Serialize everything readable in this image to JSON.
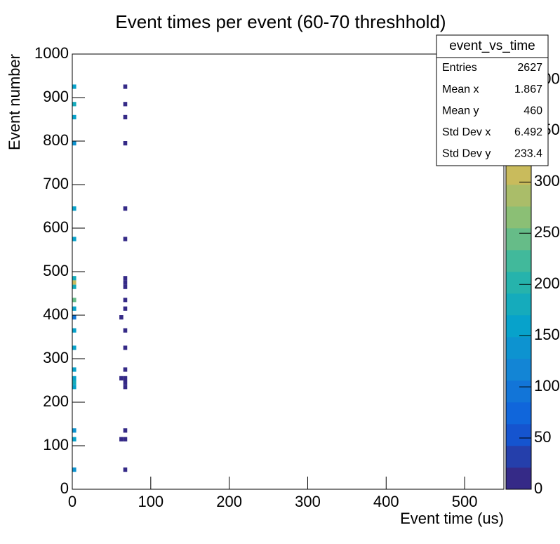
{
  "chart_data": {
    "type": "heatmap",
    "title": "Event times per event (60-70 threshhold)",
    "x_label": "Event time (us)",
    "y_label": "Event number",
    "xlim": [
      0,
      550
    ],
    "ylim": [
      0,
      1000
    ],
    "zlim": [
      0,
      425
    ],
    "xticks": [
      0,
      100,
      200,
      300,
      400,
      500
    ],
    "yticks": [
      0,
      100,
      200,
      300,
      400,
      500,
      600,
      700,
      800,
      900,
      1000
    ],
    "zticks": [
      0,
      50,
      100,
      150,
      200,
      250,
      300,
      350,
      400
    ],
    "palette": [
      "#352a87",
      "#0f5cdd",
      "#1481d6",
      "#06a4ca",
      "#2eb7a4",
      "#87bf77",
      "#d1bb59",
      "#fec832",
      "#f9fb0e"
    ],
    "x": [
      2.5,
      2.5,
      2.5,
      2.5,
      2.5,
      2.5,
      2.5,
      2.5,
      2.5,
      2.5,
      2.5,
      2.5,
      2.5,
      2.5,
      2.5,
      2.5,
      2.5,
      2.5,
      2.5,
      2.5,
      2.5,
      67.5,
      67.5,
      67.5,
      67.5,
      67.5,
      67.5,
      67.5,
      67.5,
      67.5,
      67.5,
      67.5,
      67.5,
      67.5,
      67.5,
      67.5,
      67.5,
      67.5,
      67.5,
      67.5,
      67.5,
      62.5,
      62.5,
      62.5
    ],
    "y": [
      925,
      885,
      855,
      795,
      645,
      575,
      485,
      475,
      465,
      435,
      415,
      395,
      365,
      325,
      275,
      255,
      245,
      235,
      135,
      115,
      45,
      925,
      885,
      855,
      795,
      645,
      575,
      485,
      475,
      465,
      435,
      415,
      365,
      325,
      275,
      255,
      245,
      235,
      135,
      115,
      45,
      255,
      115,
      395
    ],
    "values": [
      160,
      170,
      160,
      130,
      150,
      150,
      180,
      300,
      170,
      240,
      150,
      90,
      150,
      150,
      150,
      160,
      180,
      150,
      140,
      150,
      140,
      5,
      5,
      5,
      5,
      5,
      5,
      5,
      5,
      5,
      5,
      5,
      5,
      5,
      5,
      5,
      5,
      5,
      5,
      5,
      5,
      5,
      5,
      5
    ],
    "stats": {
      "title": "event_vs_time",
      "labels": [
        "Entries",
        "Mean x",
        "Mean y",
        "Std Dev x",
        "Std Dev y"
      ],
      "values": [
        2627,
        1.867,
        460,
        6.492,
        233.4
      ]
    }
  }
}
